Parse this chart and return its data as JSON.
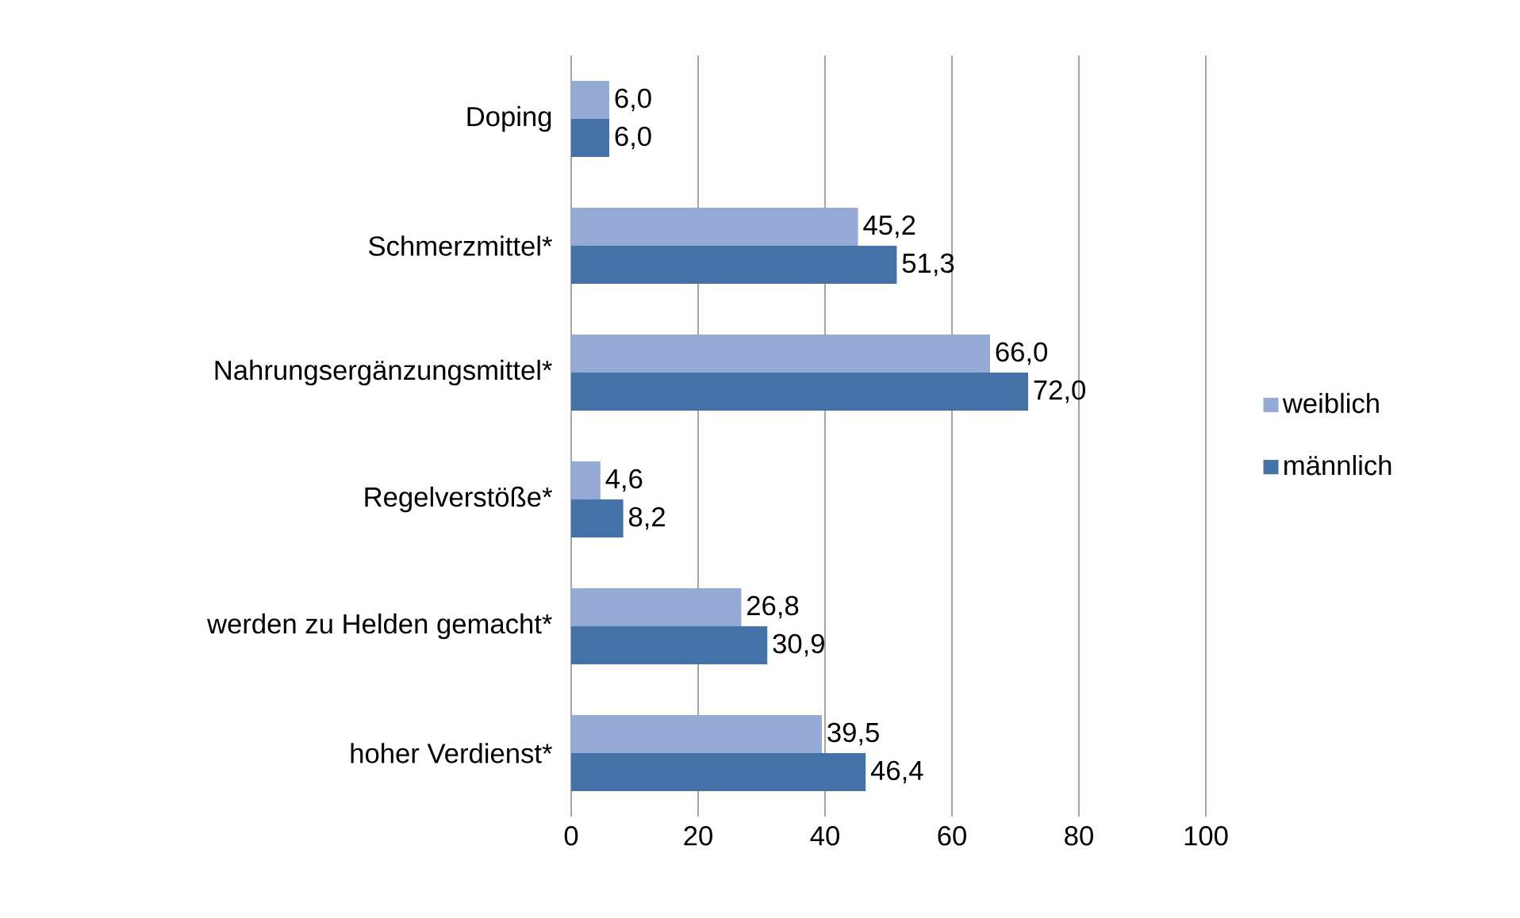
{
  "chart_data": {
    "type": "bar",
    "orientation": "horizontal",
    "categories": [
      "Doping",
      "Schmerzmittel*",
      "Nahrungsergänzungsmittel*",
      "Regelverstöße*",
      "werden zu Helden gemacht*",
      "hoher Verdienst*"
    ],
    "series": [
      {
        "name": "weiblich",
        "color": "#95abd5",
        "values": [
          6.0,
          45.2,
          66.0,
          4.6,
          26.8,
          39.5
        ],
        "value_labels": [
          "6,0",
          "45,2",
          "66,0",
          "4,6",
          "26,8",
          "39,5"
        ]
      },
      {
        "name": "männlich",
        "color": "#4572a7",
        "values": [
          6.0,
          51.3,
          72.0,
          8.2,
          30.9,
          46.4
        ],
        "value_labels": [
          "6,0",
          "51,3",
          "72,0",
          "8,2",
          "30,9",
          "46,4"
        ]
      }
    ],
    "xlim": [
      0,
      100
    ],
    "xticks": [
      0,
      20,
      40,
      60,
      80,
      100
    ],
    "grid": "x",
    "legend": "right"
  }
}
